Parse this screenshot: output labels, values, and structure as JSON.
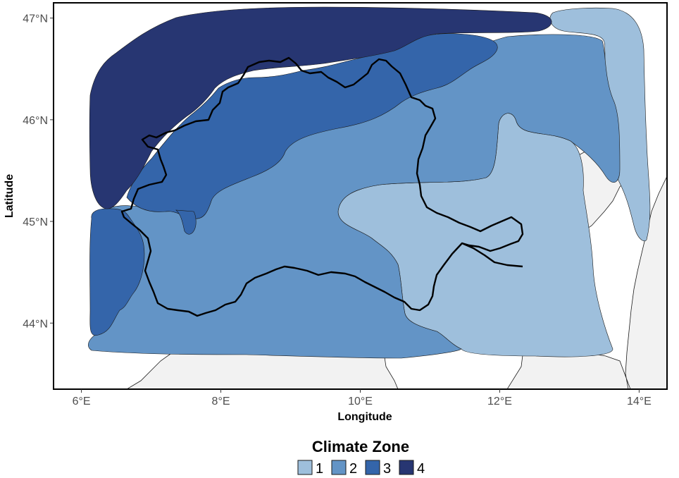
{
  "chart_data": {
    "type": "choropleth-map",
    "xlabel": "Longitude",
    "ylabel": "Latitude",
    "x_ticks": [
      "6°E",
      "8°E",
      "10°E",
      "12°E",
      "14°E"
    ],
    "y_ticks": [
      "44°N",
      "45°N",
      "46°N",
      "47°N"
    ],
    "x_tick_values": [
      6,
      8,
      10,
      12,
      14
    ],
    "y_tick_values": [
      44,
      45,
      46,
      47
    ],
    "xlim": [
      5.6,
      14.4
    ],
    "ylim": [
      43.35,
      47.15
    ],
    "legend": {
      "title": "Climate Zone",
      "placement": "bottom",
      "entries": [
        {
          "label": "1",
          "color": "#9ebfdc"
        },
        {
          "label": "2",
          "color": "#6394c6"
        },
        {
          "label": "3",
          "color": "#3465aa"
        },
        {
          "label": "4",
          "color": "#273672"
        }
      ]
    },
    "land_color": "#f2f2f2",
    "panel_background": "#ffffff"
  }
}
